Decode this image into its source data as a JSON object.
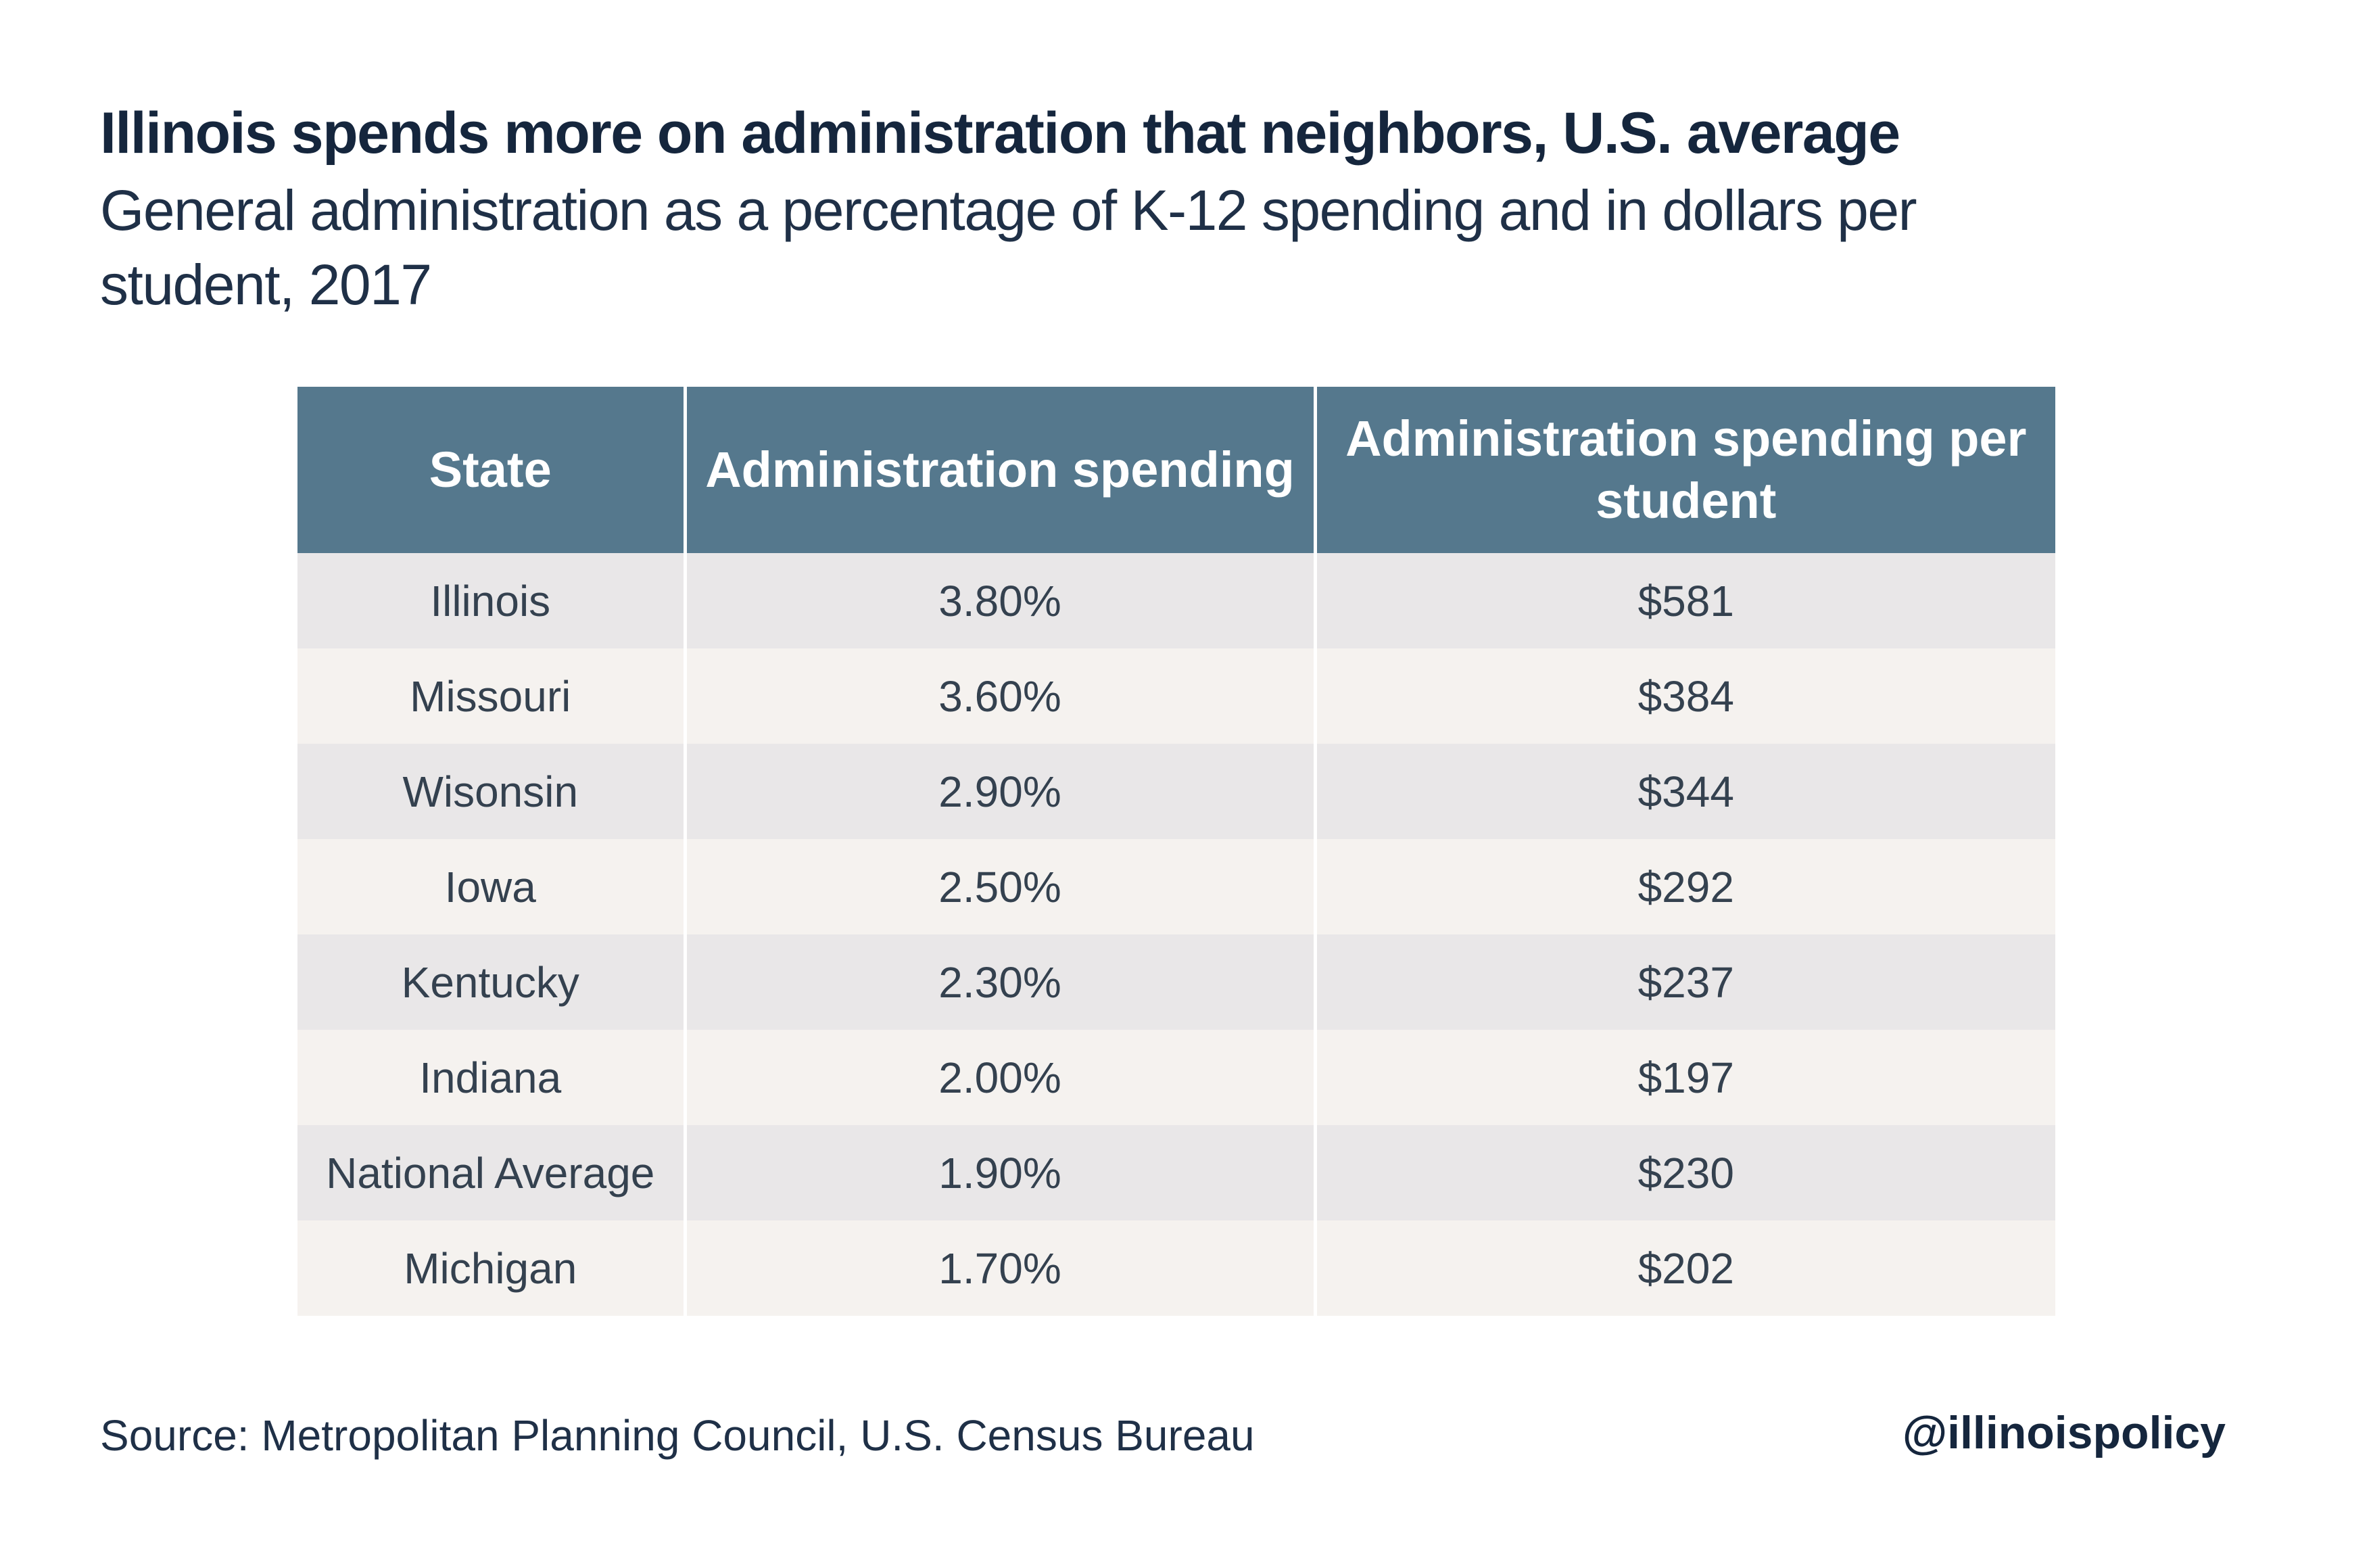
{
  "chart_data": {
    "type": "table",
    "title": "Illinois spends more on administration that neighbors, U.S. average",
    "subtitle": "General administration as a percentage of K-12 spending and in dollars per student, 2017",
    "columns": [
      "State",
      "Administration spending",
      "Administration spending per student"
    ],
    "rows": [
      {
        "state": "Illinois",
        "pct": "3.80%",
        "per_student": "$581"
      },
      {
        "state": "Missouri",
        "pct": "3.60%",
        "per_student": "$384"
      },
      {
        "state": "Wisonsin",
        "pct": "2.90%",
        "per_student": "$344"
      },
      {
        "state": "Iowa",
        "pct": "2.50%",
        "per_student": "$292"
      },
      {
        "state": "Kentucky",
        "pct": "2.30%",
        "per_student": "$237"
      },
      {
        "state": "Indiana",
        "pct": "2.00%",
        "per_student": "$197"
      },
      {
        "state": "National Average",
        "pct": "1.90%",
        "per_student": "$230"
      },
      {
        "state": "Michigan",
        "pct": "1.70%",
        "per_student": "$202"
      }
    ],
    "source": "Source: Metropolitan Planning Council, U.S. Census Bureau",
    "handle": "@illinoispolicy"
  },
  "colors": {
    "header_bg": "#55788d",
    "row_odd": "#e9e7e8",
    "row_even": "#f5f2ef",
    "title_text": "#15263d"
  }
}
